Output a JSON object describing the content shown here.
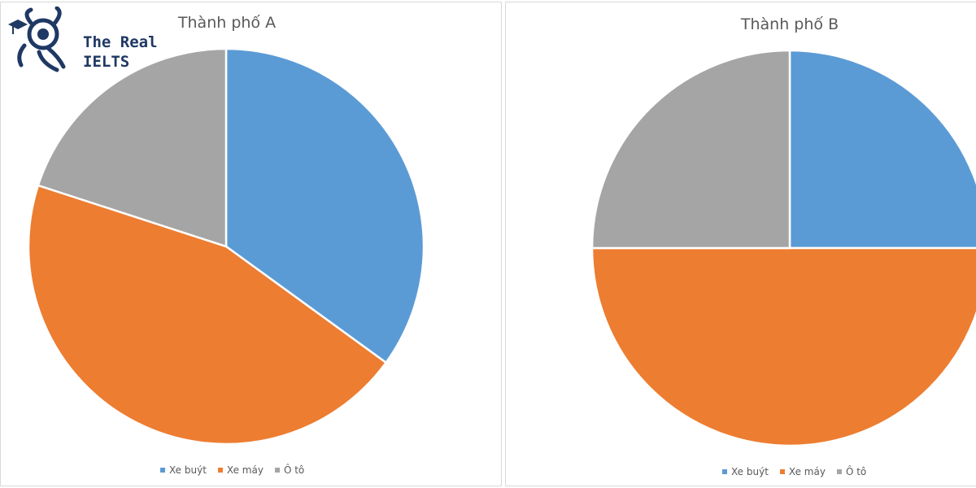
{
  "logo": {
    "line1": "The Real",
    "line2": "IELTS",
    "color": "#1f3864"
  },
  "legend_labels": [
    "Xe buýt",
    "Xe máy",
    "Ô tô"
  ],
  "colors": {
    "bus": "#5b9bd5",
    "motorbike": "#ed7d31",
    "car": "#a5a5a5"
  },
  "chart_data": [
    {
      "type": "pie",
      "title": "Thành phố A",
      "categories": [
        "Xe buýt",
        "Xe máy",
        "Ô tô"
      ],
      "values": [
        35,
        45,
        20
      ],
      "legend": "bottom"
    },
    {
      "type": "pie",
      "title": "Thành phố B",
      "categories": [
        "Xe buýt",
        "Xe máy",
        "Ô tô"
      ],
      "values": [
        25,
        50,
        25
      ],
      "legend": "bottom"
    }
  ]
}
